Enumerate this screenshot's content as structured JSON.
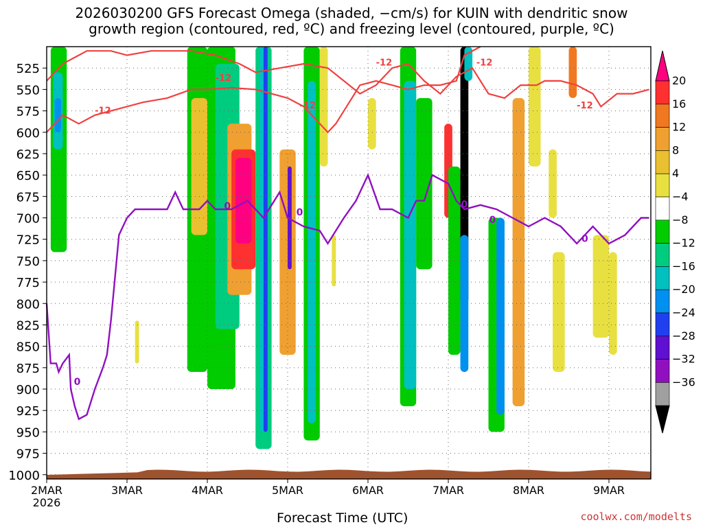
{
  "title_line1": "2026030200 GFS Forecast Omega (shaded, −cm/s) for KUIN with dendritic snow",
  "title_line2": "growth region (contoured, red, ºC) and freezing level (contoured, purple, ºC)",
  "credit": "coolwx.com/modelts",
  "chart_data": {
    "type": "heatmap",
    "title": "2026030200 GFS Forecast Omega (shaded, −cm/s) for KUIN with dendritic snow growth region (contoured, red, ºC) and freezing level (contoured, purple, ºC)",
    "xlabel": "Forecast Time (UTC)",
    "ylabel": "",
    "x_ticks": [
      "2MAR",
      "3MAR",
      "4MAR",
      "5MAR",
      "6MAR",
      "7MAR",
      "8MAR",
      "9MAR"
    ],
    "x_year": "2026",
    "x_range_days": [
      0,
      7.5
    ],
    "y_ticks": [
      525,
      550,
      575,
      600,
      625,
      650,
      675,
      700,
      725,
      750,
      775,
      800,
      825,
      850,
      875,
      900,
      925,
      950,
      975,
      1000
    ],
    "y_range_hpa": [
      500,
      1005
    ],
    "grid": true,
    "colorbar": {
      "labels": [
        "20",
        "16",
        "12",
        "8",
        "4",
        "−4",
        "−8",
        "−12",
        "−16",
        "−20",
        "−24",
        "−28",
        "−32",
        "−36"
      ],
      "colors": [
        "#ff0080",
        "#ff3030",
        "#f07820",
        "#f0a030",
        "#e8c030",
        "#e8e040",
        "#ffffff",
        "#00cc00",
        "#00cc80",
        "#00c0c0",
        "#0090f0",
        "#2040f0",
        "#6010d0",
        "#9010c0",
        "#a0a0a0",
        "#000000"
      ]
    },
    "contour_labels": {
      "dgz": "-12",
      "freezing": "0"
    },
    "freezing_level": [
      [
        0.0,
        800
      ],
      [
        0.05,
        870
      ],
      [
        0.12,
        870
      ],
      [
        0.15,
        880
      ],
      [
        0.2,
        870
      ],
      [
        0.28,
        860
      ],
      [
        0.3,
        900
      ],
      [
        0.35,
        920
      ],
      [
        0.4,
        935
      ],
      [
        0.5,
        930
      ],
      [
        0.6,
        900
      ],
      [
        0.7,
        875
      ],
      [
        0.75,
        860
      ],
      [
        0.8,
        820
      ],
      [
        0.9,
        720
      ],
      [
        1.0,
        700
      ],
      [
        1.1,
        690
      ],
      [
        1.3,
        690
      ],
      [
        1.5,
        690
      ],
      [
        1.6,
        670
      ],
      [
        1.7,
        690
      ],
      [
        1.9,
        690
      ],
      [
        2.0,
        680
      ],
      [
        2.1,
        690
      ],
      [
        2.3,
        690
      ],
      [
        2.5,
        680
      ],
      [
        2.7,
        700
      ],
      [
        2.9,
        670
      ],
      [
        3.0,
        700
      ],
      [
        3.2,
        710
      ],
      [
        3.4,
        715
      ],
      [
        3.5,
        730
      ],
      [
        3.7,
        700
      ],
      [
        3.85,
        680
      ],
      [
        4.0,
        650
      ],
      [
        4.15,
        690
      ],
      [
        4.3,
        690
      ],
      [
        4.5,
        700
      ],
      [
        4.6,
        680
      ],
      [
        4.7,
        680
      ],
      [
        4.8,
        650
      ],
      [
        5.0,
        660
      ],
      [
        5.1,
        680
      ],
      [
        5.2,
        690
      ],
      [
        5.4,
        685
      ],
      [
        5.6,
        690
      ],
      [
        5.8,
        700
      ],
      [
        6.0,
        710
      ],
      [
        6.2,
        700
      ],
      [
        6.4,
        710
      ],
      [
        6.6,
        730
      ],
      [
        6.8,
        710
      ],
      [
        7.0,
        730
      ],
      [
        7.2,
        720
      ],
      [
        7.4,
        700
      ],
      [
        7.5,
        700
      ]
    ],
    "dgz_upper_minus12": [
      [
        0.0,
        540
      ],
      [
        0.2,
        520
      ],
      [
        0.4,
        510
      ],
      [
        0.5,
        505
      ],
      [
        0.8,
        505
      ],
      [
        1.0,
        510
      ],
      [
        1.3,
        505
      ],
      [
        1.8,
        505
      ],
      [
        2.1,
        510
      ],
      [
        2.4,
        520
      ],
      [
        2.6,
        530
      ],
      [
        2.9,
        525
      ],
      [
        3.2,
        520
      ],
      [
        3.5,
        525
      ],
      [
        3.7,
        540
      ],
      [
        3.9,
        555
      ],
      [
        4.1,
        545
      ],
      [
        4.3,
        525
      ],
      [
        4.5,
        520
      ],
      [
        4.7,
        540
      ],
      [
        4.9,
        555
      ],
      [
        5.1,
        535
      ],
      [
        5.3,
        525
      ],
      [
        5.5,
        555
      ],
      [
        5.7,
        560
      ],
      [
        5.9,
        545
      ],
      [
        6.1,
        545
      ],
      [
        6.2,
        540
      ],
      [
        6.4,
        540
      ],
      [
        6.6,
        545
      ],
      [
        6.8,
        555
      ],
      [
        6.9,
        570
      ],
      [
        7.1,
        555
      ],
      [
        7.3,
        555
      ],
      [
        7.5,
        550
      ]
    ],
    "dgz_lower_minus12": [
      [
        0.0,
        600
      ],
      [
        0.2,
        580
      ],
      [
        0.4,
        590
      ],
      [
        0.6,
        580
      ],
      [
        0.8,
        575
      ],
      [
        1.0,
        570
      ],
      [
        1.2,
        565
      ],
      [
        1.5,
        560
      ],
      [
        1.8,
        550
      ],
      [
        2.0,
        550
      ],
      [
        2.3,
        548
      ],
      [
        2.6,
        550
      ],
      [
        2.8,
        555
      ],
      [
        3.0,
        560
      ],
      [
        3.2,
        570
      ],
      [
        3.4,
        590
      ],
      [
        3.5,
        600
      ],
      [
        3.6,
        590
      ],
      [
        3.8,
        560
      ],
      [
        3.9,
        545
      ],
      [
        4.1,
        540
      ],
      [
        4.3,
        545
      ],
      [
        4.5,
        550
      ],
      [
        4.7,
        545
      ],
      [
        4.9,
        545
      ],
      [
        5.1,
        540
      ],
      [
        5.2,
        510
      ],
      [
        5.4,
        500
      ]
    ],
    "omega_features": [
      {
        "t0": 0.05,
        "t1": 0.25,
        "p0": 500,
        "p1": 740,
        "color": "#00cc00"
      },
      {
        "t0": 0.08,
        "t1": 0.2,
        "p0": 530,
        "p1": 620,
        "color": "#00c0c0"
      },
      {
        "t0": 0.1,
        "t1": 0.18,
        "p0": 560,
        "p1": 600,
        "color": "#0090f0"
      },
      {
        "t0": 1.1,
        "t1": 1.15,
        "p0": 820,
        "p1": 870,
        "color": "#e8e040"
      },
      {
        "t0": 1.75,
        "t1": 2.0,
        "p0": 500,
        "p1": 880,
        "color": "#00cc00"
      },
      {
        "t0": 1.8,
        "t1": 2.0,
        "p0": 560,
        "p1": 720,
        "color": "#e8c030"
      },
      {
        "t0": 2.0,
        "t1": 2.35,
        "p0": 500,
        "p1": 900,
        "color": "#00cc00"
      },
      {
        "t0": 2.1,
        "t1": 2.4,
        "p0": 520,
        "p1": 830,
        "color": "#00cc80"
      },
      {
        "t0": 2.25,
        "t1": 2.55,
        "p0": 590,
        "p1": 790,
        "color": "#f0a030"
      },
      {
        "t0": 2.3,
        "t1": 2.6,
        "p0": 620,
        "p1": 760,
        "color": "#ff3030"
      },
      {
        "t0": 2.35,
        "t1": 2.55,
        "p0": 630,
        "p1": 730,
        "color": "#ff0080"
      },
      {
        "t0": 2.6,
        "t1": 2.8,
        "p0": 500,
        "p1": 970,
        "color": "#00cc80"
      },
      {
        "t0": 2.65,
        "t1": 2.75,
        "p0": 500,
        "p1": 950,
        "color": "#00c0c0"
      },
      {
        "t0": 2.7,
        "t1": 2.75,
        "p0": 500,
        "p1": 950,
        "color": "#2040f0"
      },
      {
        "t0": 2.9,
        "t1": 3.1,
        "p0": 620,
        "p1": 860,
        "color": "#f0a030"
      },
      {
        "t0": 3.0,
        "t1": 3.05,
        "p0": 640,
        "p1": 760,
        "color": "#6010d0"
      },
      {
        "t0": 3.2,
        "t1": 3.4,
        "p0": 500,
        "p1": 960,
        "color": "#00cc00"
      },
      {
        "t0": 3.25,
        "t1": 3.35,
        "p0": 540,
        "p1": 940,
        "color": "#00c0c0"
      },
      {
        "t0": 3.4,
        "t1": 3.5,
        "p0": 500,
        "p1": 640,
        "color": "#e8e040"
      },
      {
        "t0": 3.55,
        "t1": 3.6,
        "p0": 720,
        "p1": 780,
        "color": "#e8e040"
      },
      {
        "t0": 4.0,
        "t1": 4.1,
        "p0": 560,
        "p1": 620,
        "color": "#e8e040"
      },
      {
        "t0": 4.4,
        "t1": 4.6,
        "p0": 500,
        "p1": 920,
        "color": "#00cc00"
      },
      {
        "t0": 4.45,
        "t1": 4.6,
        "p0": 540,
        "p1": 900,
        "color": "#00c0c0"
      },
      {
        "t0": 4.6,
        "t1": 4.8,
        "p0": 560,
        "p1": 760,
        "color": "#00cc00"
      },
      {
        "t0": 4.95,
        "t1": 5.05,
        "p0": 590,
        "p1": 700,
        "color": "#ff3030"
      },
      {
        "t0": 5.0,
        "t1": 5.15,
        "p0": 640,
        "p1": 860,
        "color": "#00cc00"
      },
      {
        "t0": 5.15,
        "t1": 5.25,
        "p0": 500,
        "p1": 800,
        "color": "#000000"
      },
      {
        "t0": 5.15,
        "t1": 5.25,
        "p0": 720,
        "p1": 880,
        "color": "#0090f0"
      },
      {
        "t0": 5.2,
        "t1": 5.3,
        "p0": 500,
        "p1": 540,
        "color": "#00c0c0"
      },
      {
        "t0": 5.5,
        "t1": 5.7,
        "p0": 700,
        "p1": 950,
        "color": "#00cc00"
      },
      {
        "t0": 5.6,
        "t1": 5.7,
        "p0": 700,
        "p1": 930,
        "color": "#0090f0"
      },
      {
        "t0": 5.8,
        "t1": 5.95,
        "p0": 560,
        "p1": 920,
        "color": "#f0a030"
      },
      {
        "t0": 6.0,
        "t1": 6.15,
        "p0": 500,
        "p1": 640,
        "color": "#e8e040"
      },
      {
        "t0": 6.25,
        "t1": 6.35,
        "p0": 620,
        "p1": 700,
        "color": "#e8e040"
      },
      {
        "t0": 6.3,
        "t1": 6.45,
        "p0": 740,
        "p1": 880,
        "color": "#e8e040"
      },
      {
        "t0": 6.5,
        "t1": 6.6,
        "p0": 500,
        "p1": 560,
        "color": "#f07820"
      },
      {
        "t0": 6.8,
        "t1": 7.0,
        "p0": 720,
        "p1": 840,
        "color": "#e8e040"
      },
      {
        "t0": 7.0,
        "t1": 7.1,
        "p0": 740,
        "p1": 860,
        "color": "#e8e040"
      }
    ]
  }
}
